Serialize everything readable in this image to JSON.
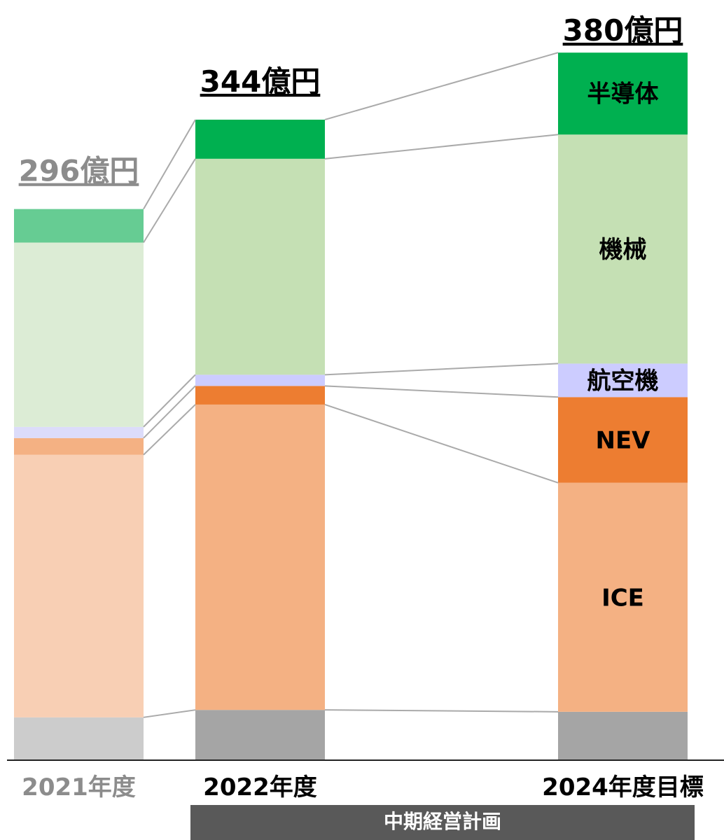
{
  "chart_data": {
    "type": "stacked-bar",
    "categories": [
      "2021年度",
      "2022年度",
      "2024年度目標"
    ],
    "category_colors": [
      "#8c8c8c",
      "#000000",
      "#000000"
    ],
    "totals": [
      296,
      344,
      380
    ],
    "total_labels": [
      "296億円",
      "344億円",
      "380億円"
    ],
    "series": [
      {
        "name": null,
        "colors": [
          "#cccccc",
          "#a5a5a5",
          "#a5a5a5"
        ],
        "values": [
          23,
          27,
          26
        ]
      },
      {
        "name": "ICE",
        "colors": [
          "#f8cfb4",
          "#f4b183",
          "#f4b183"
        ],
        "values": [
          141,
          164,
          123
        ]
      },
      {
        "name": "NEV",
        "colors": [
          "#f4b183",
          "#ed7d31",
          "#ed7d31"
        ],
        "values": [
          9,
          10,
          46
        ]
      },
      {
        "name": "航空機",
        "colors": [
          "#dcdcfa",
          "#ccccff",
          "#ccccff"
        ],
        "values": [
          6,
          6,
          18
        ]
      },
      {
        "name": "機械",
        "colors": [
          "#dcecd5",
          "#c5e0b4",
          "#c5e0b4"
        ],
        "values": [
          99,
          116,
          123
        ]
      },
      {
        "name": "半導体",
        "colors": [
          "#66cc93",
          "#00b050",
          "#00b050"
        ],
        "values": [
          18,
          21,
          44
        ]
      }
    ],
    "banner": "中期経営計画"
  }
}
